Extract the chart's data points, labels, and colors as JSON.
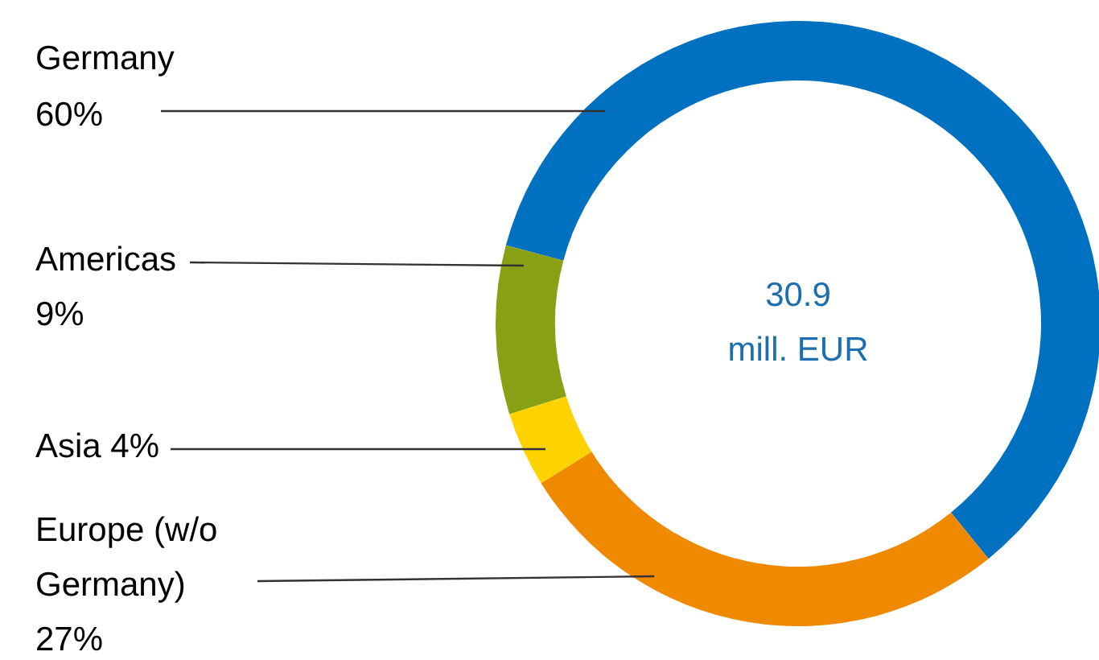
{
  "chart_data": {
    "type": "donut",
    "categories": [
      "Germany",
      "Europe (w/o Germany)",
      "Asia",
      "Americas"
    ],
    "values": [
      60,
      27,
      4,
      9
    ],
    "colors": [
      "#0070c0",
      "#ef8a00",
      "#ffd200",
      "#88a114"
    ],
    "value_labels": [
      "60%",
      "27%",
      "4%",
      "9%"
    ],
    "annotations": [
      "30.9 mill. EUR"
    ]
  }
}
